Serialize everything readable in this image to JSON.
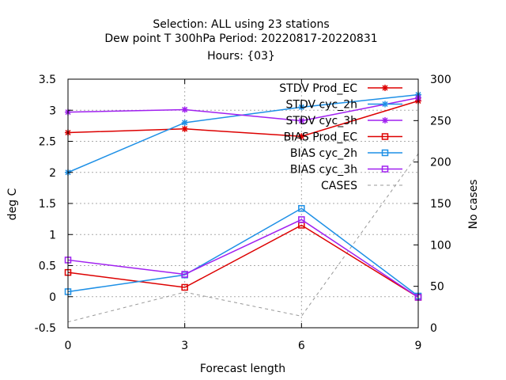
{
  "chart_data": {
    "type": "line",
    "title_lines": [
      "Selection: ALL using     23 stations",
      "Dew point T 300hPa   Period: 20220817-20220831",
      "Hours: {03}"
    ],
    "xlabel": "Forecast length",
    "ylabel": "deg C",
    "y2label": "No cases",
    "x": [
      0,
      3,
      6,
      9
    ],
    "xlim": [
      0,
      9
    ],
    "ylim": [
      -0.5,
      3.5
    ],
    "y2lim": [
      0,
      300
    ],
    "xticks": [
      "0",
      "3",
      "6",
      "9"
    ],
    "yticks": [
      "-0.5",
      "0",
      "0.5",
      "1",
      "1.5",
      "2",
      "2.5",
      "3",
      "3.5"
    ],
    "y2ticks": [
      "0",
      "50",
      "100",
      "150",
      "200",
      "250",
      "300"
    ],
    "grid": true,
    "legend_position": "top-right",
    "series": [
      {
        "name": "STDV Prod_EC",
        "values": [
          2.64,
          2.7,
          2.58,
          3.15
        ],
        "color": "#dd0000",
        "marker": "star",
        "axis": "y"
      },
      {
        "name": "STDV cyc_2h",
        "values": [
          2.0,
          2.8,
          3.05,
          3.25
        ],
        "color": "#1e90e6",
        "marker": "star",
        "axis": "y"
      },
      {
        "name": "STDV cyc_3h",
        "values": [
          2.97,
          3.01,
          2.83,
          3.2
        ],
        "color": "#a020f0",
        "marker": "star",
        "axis": "y"
      },
      {
        "name": "BIAS Prod_EC",
        "values": [
          0.39,
          0.15,
          1.15,
          -0.01
        ],
        "color": "#dd0000",
        "marker": "square",
        "axis": "y"
      },
      {
        "name": "BIAS cyc_2h",
        "values": [
          0.08,
          0.35,
          1.42,
          0.01
        ],
        "color": "#1e90e6",
        "marker": "square",
        "axis": "y"
      },
      {
        "name": "BIAS cyc_3h",
        "values": [
          0.59,
          0.36,
          1.24,
          -0.01
        ],
        "color": "#a020f0",
        "marker": "square",
        "axis": "y"
      },
      {
        "name": "CASES",
        "values": [
          7,
          43,
          14,
          210
        ],
        "color": "#999999",
        "marker": "none",
        "dashed": true,
        "axis": "y2"
      }
    ]
  }
}
